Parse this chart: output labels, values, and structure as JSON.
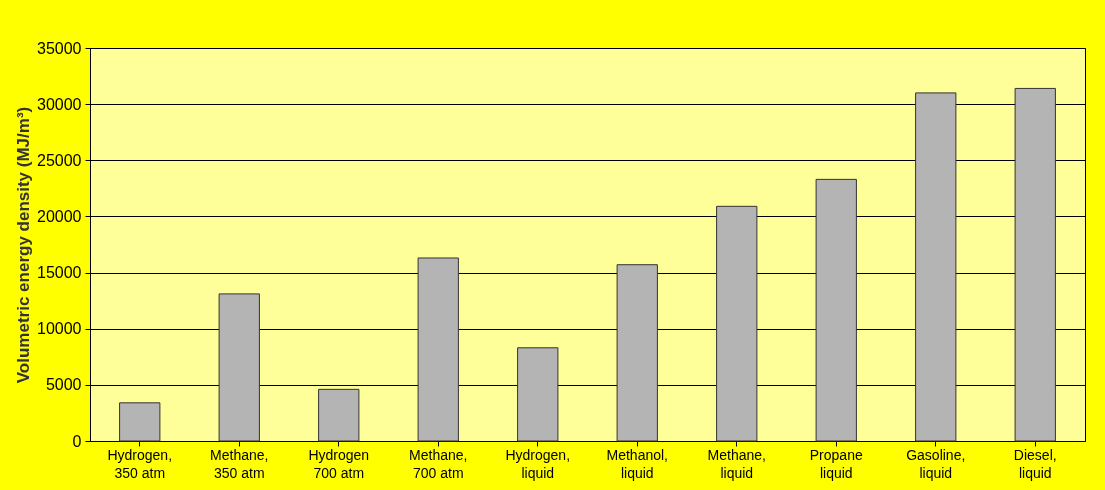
{
  "chart_data": {
    "type": "bar",
    "ylabel": "Volumetric energy density (MJ/m³)",
    "categories": [
      "Hydrogen,\n350 atm",
      "Methane,\n350 atm",
      "Hydrogen\n700 atm",
      "Methane,\n700 atm",
      "Hydrogen,\nliquid",
      "Methanol,\nliquid",
      "Methane,\nliquid",
      "Propane\nliquid",
      "Gasoline,\nliquid",
      "Diesel,\nliquid"
    ],
    "values": [
      3400,
      13100,
      4600,
      16300,
      8300,
      15700,
      20900,
      23300,
      31000,
      31400
    ],
    "color": "#b4b4b4",
    "ylim": [
      0,
      35000
    ],
    "yticks": [
      0,
      5000,
      10000,
      15000,
      20000,
      25000,
      30000,
      35000
    ],
    "grid": "y"
  }
}
